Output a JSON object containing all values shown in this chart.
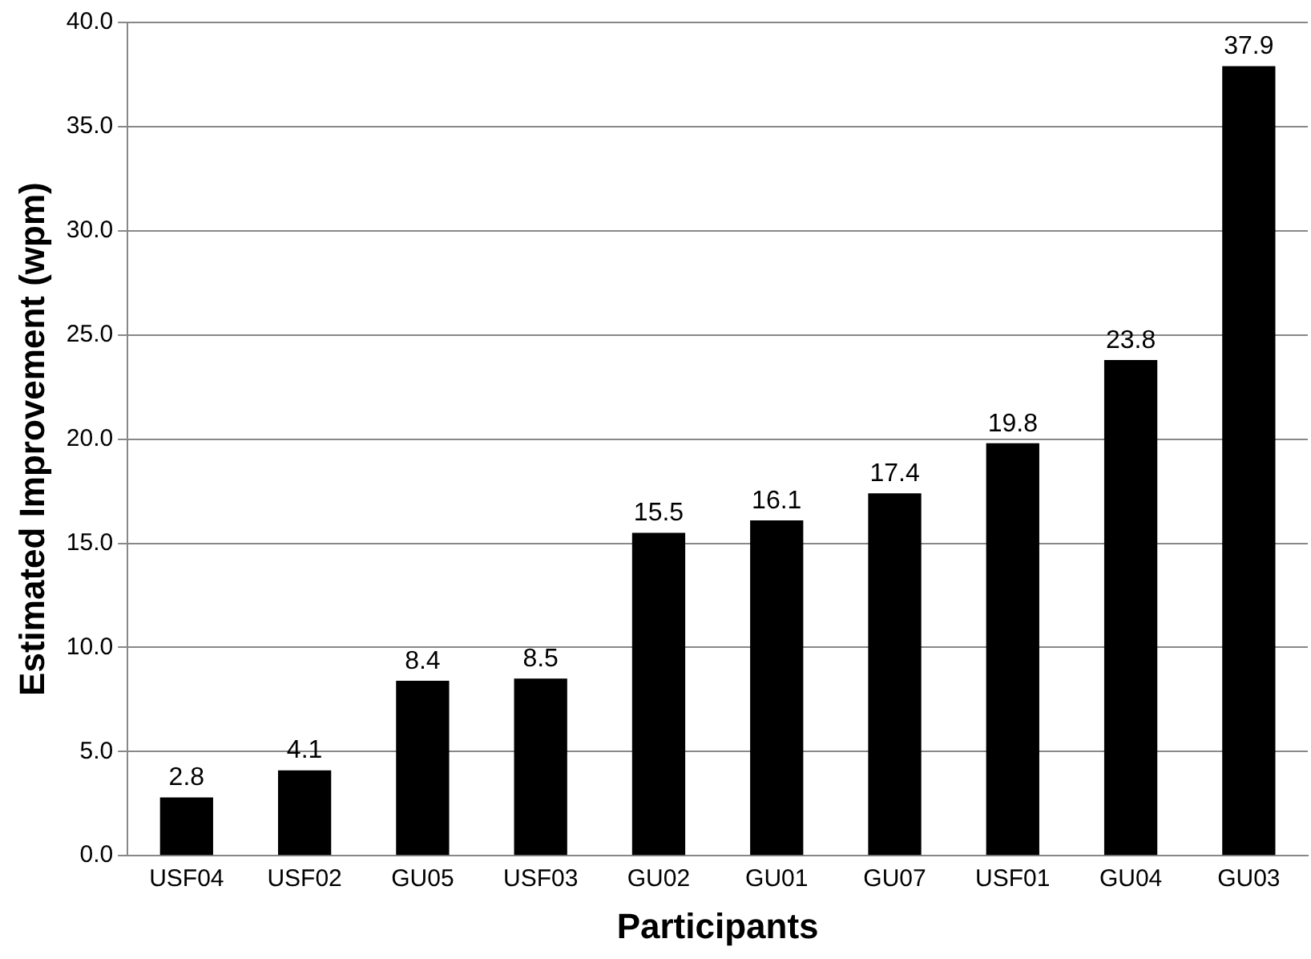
{
  "chart_data": {
    "type": "bar",
    "xlabel": "Participants",
    "ylabel": "Estimated Improvement (wpm)",
    "categories": [
      "USF04",
      "USF02",
      "GU05",
      "USF03",
      "GU02",
      "GU01",
      "GU07",
      "USF01",
      "GU04",
      "GU03"
    ],
    "values": [
      2.8,
      4.1,
      8.4,
      8.5,
      15.5,
      16.1,
      17.4,
      19.8,
      23.8,
      37.9
    ],
    "color": "#000000",
    "ylim": [
      0,
      40
    ],
    "yticks": [
      {
        "value": 0,
        "label": "0.0"
      },
      {
        "value": 5,
        "label": "5.0"
      },
      {
        "value": 10,
        "label": "10.0"
      },
      {
        "value": 15,
        "label": "15.0"
      },
      {
        "value": 20,
        "label": "20.0"
      },
      {
        "value": 25,
        "label": "25.0"
      },
      {
        "value": 30,
        "label": "30.0"
      },
      {
        "value": 35,
        "label": "35.0"
      },
      {
        "value": 40,
        "label": "40.0"
      }
    ],
    "grid": "y",
    "data_labels": true,
    "legend": false
  }
}
